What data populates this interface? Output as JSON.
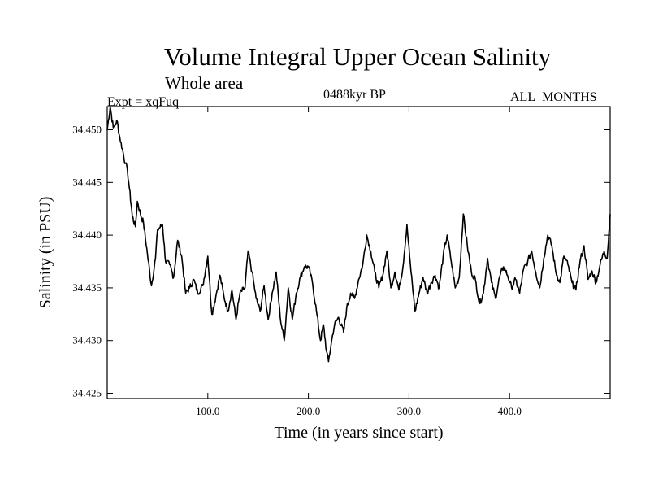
{
  "chart_data": {
    "type": "line",
    "title": "Volume Integral Upper Ocean Salinity",
    "subtitle": "Whole area",
    "experiment": "Expt = xqFuq",
    "period": "0488kyr BP",
    "months": "ALL_MONTHS",
    "xlabel": "Time (in years since start)",
    "ylabel": "Salinity (in PSU)",
    "xlim": [
      0,
      500
    ],
    "ylim": [
      34.4245,
      34.4522
    ],
    "xticks": [
      100,
      200,
      300,
      400
    ],
    "xtick_labels": [
      "100.0",
      "200.0",
      "300.0",
      "400.0"
    ],
    "yticks": [
      34.425,
      34.43,
      34.435,
      34.44,
      34.445,
      34.45
    ],
    "ytick_labels": [
      "34.425",
      "34.430",
      "34.435",
      "34.440",
      "34.445",
      "34.450"
    ],
    "series": [
      {
        "name": "Salinity",
        "x": [
          0,
          3,
          6,
          8,
          10,
          12,
          15,
          18,
          20,
          22,
          25,
          28,
          30,
          33,
          36,
          40,
          44,
          48,
          50,
          55,
          58,
          62,
          66,
          70,
          74,
          78,
          82,
          86,
          90,
          95,
          100,
          104,
          108,
          112,
          116,
          120,
          124,
          128,
          132,
          137,
          140,
          144,
          148,
          152,
          156,
          160,
          164,
          168,
          172,
          176,
          180,
          184,
          188,
          192,
          196,
          200,
          204,
          208,
          212,
          215,
          218,
          220,
          224,
          226,
          230,
          235,
          238,
          242,
          246,
          250,
          254,
          258,
          262,
          266,
          270,
          274,
          278,
          282,
          286,
          290,
          294,
          298,
          302,
          306,
          310,
          314,
          318,
          322,
          326,
          330,
          334,
          338,
          342,
          346,
          350,
          354,
          358,
          362,
          366,
          370,
          374,
          378,
          382,
          386,
          390,
          394,
          398,
          402,
          406,
          410,
          414,
          418,
          422,
          426,
          430,
          434,
          438,
          442,
          446,
          450,
          454,
          458,
          462,
          466,
          470,
          474,
          478,
          482,
          486,
          490,
          494,
          497,
          500
        ],
        "values": [
          34.45,
          34.4522,
          34.4502,
          34.4505,
          34.4508,
          34.4495,
          34.4482,
          34.4468,
          34.4462,
          34.4445,
          34.4418,
          34.4408,
          34.4432,
          34.442,
          34.4412,
          34.4382,
          34.4352,
          34.4378,
          34.4405,
          34.441,
          34.4375,
          34.4372,
          34.436,
          34.4395,
          34.438,
          34.4345,
          34.435,
          34.4358,
          34.4345,
          34.4352,
          34.438,
          34.4325,
          34.4342,
          34.4362,
          34.4342,
          34.4328,
          34.4348,
          34.432,
          34.4345,
          34.435,
          34.4385,
          34.4365,
          34.434,
          34.4328,
          34.4352,
          34.432,
          34.4345,
          34.4365,
          34.4322,
          34.43,
          34.435,
          34.432,
          34.4345,
          34.436,
          34.437,
          34.437,
          34.4355,
          34.4328,
          34.43,
          34.4315,
          34.429,
          34.428,
          34.4305,
          34.4315,
          34.4322,
          34.4308,
          34.433,
          34.4345,
          34.434,
          34.4358,
          34.4372,
          34.44,
          34.4385,
          34.4365,
          34.435,
          34.4362,
          34.4385,
          34.435,
          34.4365,
          34.4348,
          34.437,
          34.441,
          34.4365,
          34.4328,
          34.4345,
          34.436,
          34.4345,
          34.4355,
          34.4362,
          34.435,
          34.438,
          34.44,
          34.4375,
          34.435,
          34.436,
          34.442,
          34.439,
          34.4365,
          34.4358,
          34.4335,
          34.4345,
          34.4378,
          34.4355,
          34.434,
          34.436,
          34.437,
          34.4362,
          34.435,
          34.4358,
          34.4345,
          34.4368,
          34.4375,
          34.4385,
          34.4365,
          34.435,
          34.4378,
          34.44,
          34.439,
          34.4365,
          34.4355,
          34.438,
          34.4372,
          34.4355,
          34.4348,
          34.4375,
          34.439,
          34.4358,
          34.4366,
          34.4355,
          34.4372,
          34.4385,
          34.4378,
          34.442
        ]
      }
    ]
  }
}
